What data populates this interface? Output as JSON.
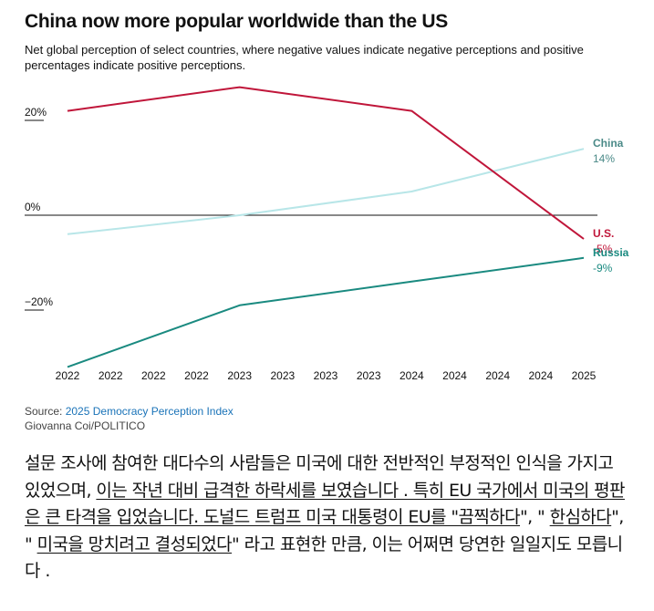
{
  "header": {
    "title": "China now more popular worldwide than the US",
    "subtitle": "Net global perception of select countries, where negative values indicate negative perceptions and positive percentages indicate positive perceptions."
  },
  "chart_data": {
    "type": "line",
    "title": "China now more popular worldwide than the US",
    "x": [
      "2022",
      "2022",
      "2022",
      "2022",
      "2023",
      "2023",
      "2023",
      "2023",
      "2024",
      "2024",
      "2024",
      "2024",
      "2025"
    ],
    "x_positions": [
      0,
      1,
      2,
      3,
      4,
      5,
      6,
      7,
      8,
      9,
      10,
      11,
      12
    ],
    "yticks": [
      20,
      0,
      -20
    ],
    "ytick_labels": [
      "20%",
      "0%",
      "−20%"
    ],
    "ylim": [
      -32,
      27
    ],
    "series": [
      {
        "name": "China",
        "end_label": "14%",
        "color": "#b8e6e8",
        "label_color": "#4b8a88",
        "points": [
          {
            "x": 0,
            "y": -4
          },
          {
            "x": 4,
            "y": 0
          },
          {
            "x": 8,
            "y": 5
          },
          {
            "x": 12,
            "y": 14
          }
        ]
      },
      {
        "name": "U.S.",
        "end_label": "-5%",
        "color": "#c0163a",
        "label_color": "#c0163a",
        "points": [
          {
            "x": 0,
            "y": 22
          },
          {
            "x": 4,
            "y": 27
          },
          {
            "x": 8,
            "y": 22
          },
          {
            "x": 12,
            "y": -5
          }
        ]
      },
      {
        "name": "Russia",
        "end_label": "-9%",
        "color": "#1a8a80",
        "label_color": "#1a8a80",
        "points": [
          {
            "x": 0,
            "y": -32
          },
          {
            "x": 4,
            "y": -19
          },
          {
            "x": 8,
            "y": -14
          },
          {
            "x": 12,
            "y": -9
          }
        ]
      }
    ]
  },
  "footer": {
    "source_prefix": "Source: ",
    "source_link": "2025 Democracy Perception Index",
    "credit": "Giovanna Coi/POLITICO"
  },
  "article": {
    "p1": "설문 조사에 참여한 대다수의 사람들은 미국에 대한 전반적인 부정적인 인식을 가지고 있었으며, ",
    "p2": "이는 작년 대비 급격한 하락세를 보였습니다 . 특히 EU 국가에서 미국의 평판은 큰 타격을 입었습니다. 도널드 트럼프 미국 대통령이 EU를 \"",
    "p3": "끔찍하다",
    "p4": "\", \" ",
    "p5": "한심하다",
    "p6": "\", \" ",
    "p7": "미국을 망치려고 결성되었다",
    "p8": "\" 라고 표현한 만큼, 이는 어쩌면 당연한 일일지도 모릅니다 ."
  }
}
